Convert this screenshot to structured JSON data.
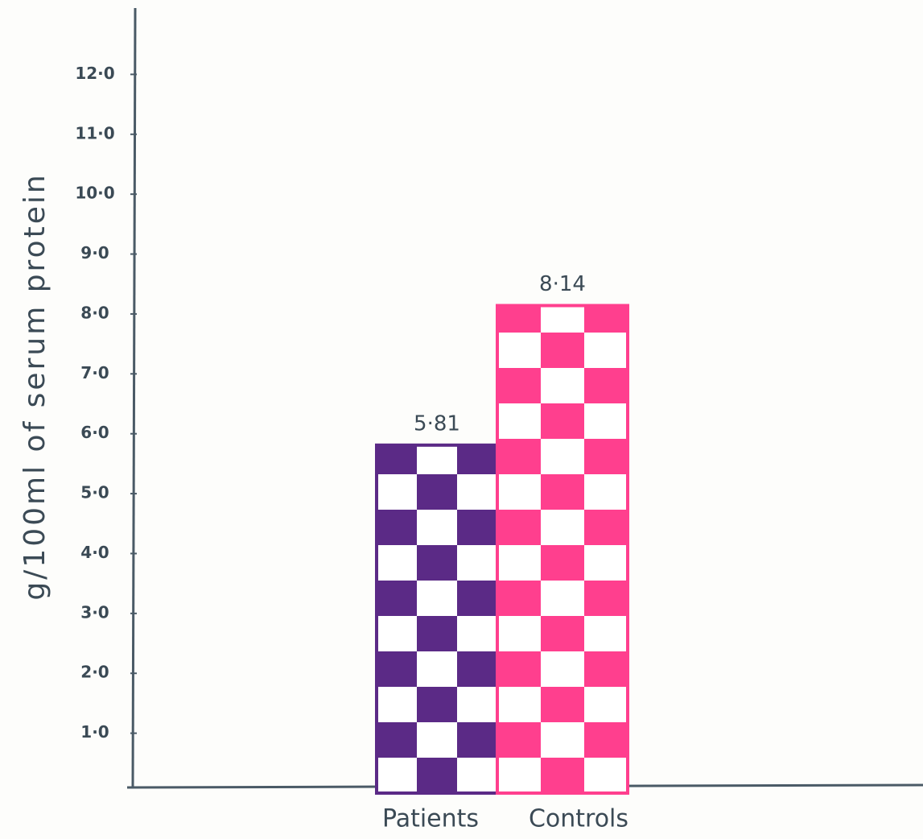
{
  "chart_data": {
    "type": "bar",
    "y_label": "g/100ml of serum protein",
    "categories": [
      "Patients",
      "Controls"
    ],
    "values": [
      5.81,
      8.14
    ],
    "value_labels": [
      "5·81",
      "8·14"
    ],
    "colors": [
      "#5b2a86",
      "#ff3f8e"
    ],
    "ylim": [
      0,
      13
    ],
    "yticks": [
      {
        "value": 1,
        "label": "1·0"
      },
      {
        "value": 2,
        "label": "2·0"
      },
      {
        "value": 3,
        "label": "3·0"
      },
      {
        "value": 4,
        "label": "4·0"
      },
      {
        "value": 5,
        "label": "5·0"
      },
      {
        "value": 6,
        "label": "6·0"
      },
      {
        "value": 7,
        "label": "7·0"
      },
      {
        "value": 8,
        "label": "8·0"
      },
      {
        "value": 9,
        "label": "9·0"
      },
      {
        "value": 10,
        "label": "10·0"
      },
      {
        "value": 11,
        "label": "11·0"
      },
      {
        "value": 12,
        "label": "12·0"
      }
    ],
    "grid": false
  }
}
